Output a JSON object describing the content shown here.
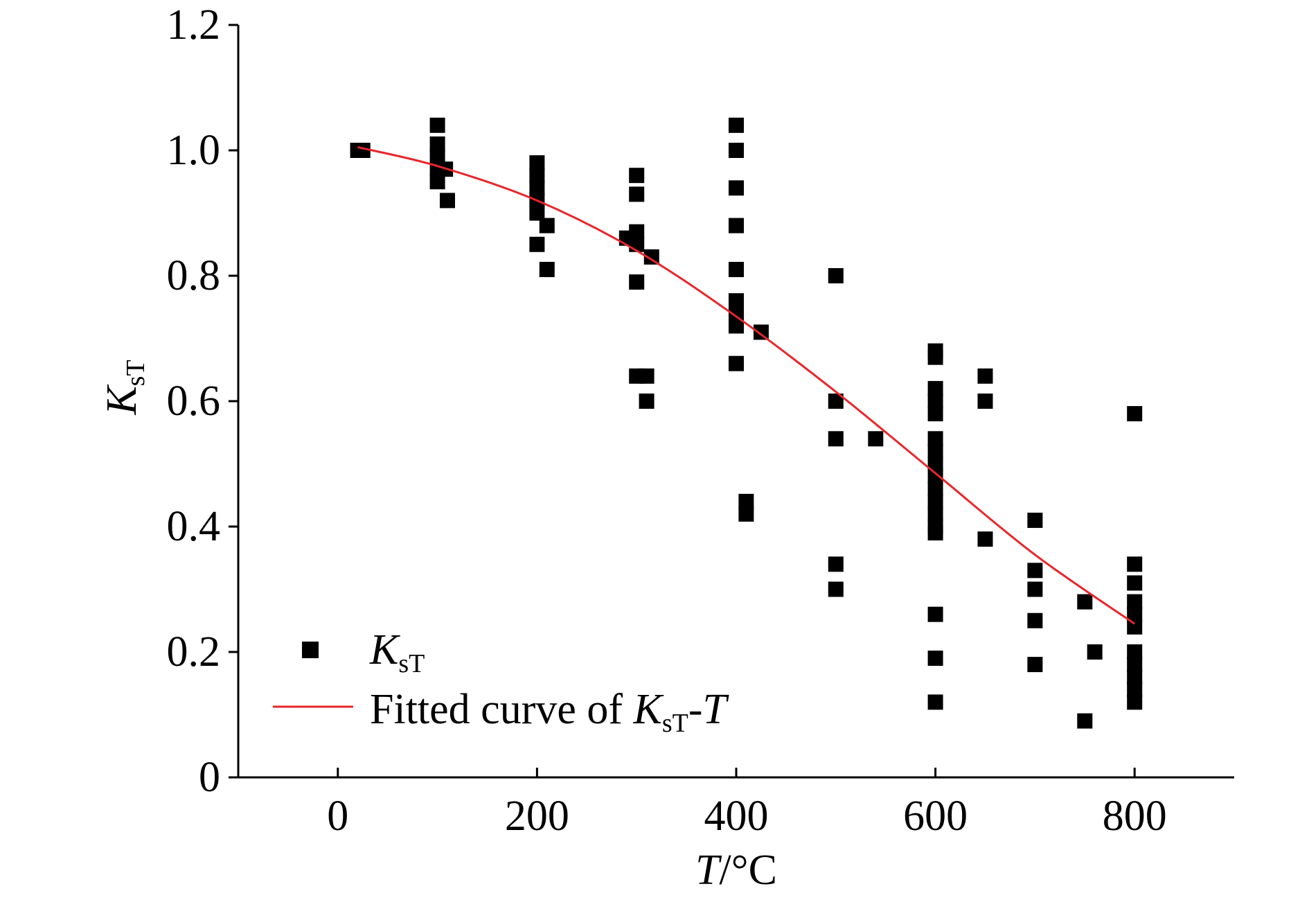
{
  "chart_data": {
    "type": "scatter",
    "title": "",
    "xlabel": {
      "var": "T",
      "unit": "/°C"
    },
    "ylabel": {
      "var": "K",
      "sub": "sT"
    },
    "xlim": [
      -100,
      900
    ],
    "ylim": [
      0,
      1.2
    ],
    "x_ticks": [
      0,
      200,
      400,
      600,
      800
    ],
    "x_tick_labels": [
      "0",
      "200",
      "400",
      "600",
      "800"
    ],
    "y_ticks": [
      0,
      0.2,
      0.4,
      0.6,
      0.8,
      1.0,
      1.2
    ],
    "y_tick_labels": [
      "0",
      "0.2",
      "0.4",
      "0.6",
      "0.8",
      "1.0",
      "1.2"
    ],
    "grid": false,
    "legend_position": "bottom-left",
    "series": [
      {
        "name": "KsT",
        "legend_label": {
          "var": "K",
          "sub": "sT"
        },
        "kind": "scatter",
        "marker": "square",
        "color": "#000000",
        "points": [
          [
            20,
            1.0
          ],
          [
            25,
            1.0
          ],
          [
            100,
            1.04
          ],
          [
            100,
            1.01
          ],
          [
            100,
            0.99
          ],
          [
            100,
            0.97
          ],
          [
            100,
            0.95
          ],
          [
            108,
            0.97
          ],
          [
            110,
            0.92
          ],
          [
            200,
            0.98
          ],
          [
            200,
            0.96
          ],
          [
            200,
            0.94
          ],
          [
            200,
            0.92
          ],
          [
            200,
            0.9
          ],
          [
            200,
            0.85
          ],
          [
            210,
            0.88
          ],
          [
            210,
            0.81
          ],
          [
            290,
            0.86
          ],
          [
            300,
            0.96
          ],
          [
            300,
            0.93
          ],
          [
            300,
            0.87
          ],
          [
            300,
            0.85
          ],
          [
            300,
            0.79
          ],
          [
            300,
            0.64
          ],
          [
            310,
            0.64
          ],
          [
            310,
            0.6
          ],
          [
            315,
            0.83
          ],
          [
            400,
            1.04
          ],
          [
            400,
            1.0
          ],
          [
            400,
            0.94
          ],
          [
            400,
            0.88
          ],
          [
            400,
            0.81
          ],
          [
            400,
            0.76
          ],
          [
            400,
            0.74
          ],
          [
            400,
            0.72
          ],
          [
            400,
            0.66
          ],
          [
            410,
            0.44
          ],
          [
            410,
            0.42
          ],
          [
            425,
            0.71
          ],
          [
            500,
            0.8
          ],
          [
            500,
            0.6
          ],
          [
            500,
            0.54
          ],
          [
            500,
            0.34
          ],
          [
            500,
            0.3
          ],
          [
            540,
            0.54
          ],
          [
            600,
            0.68
          ],
          [
            600,
            0.67
          ],
          [
            600,
            0.62
          ],
          [
            600,
            0.6
          ],
          [
            600,
            0.58
          ],
          [
            600,
            0.54
          ],
          [
            600,
            0.52
          ],
          [
            600,
            0.5
          ],
          [
            600,
            0.48
          ],
          [
            600,
            0.46
          ],
          [
            600,
            0.44
          ],
          [
            600,
            0.42
          ],
          [
            600,
            0.4
          ],
          [
            600,
            0.39
          ],
          [
            600,
            0.26
          ],
          [
            600,
            0.19
          ],
          [
            600,
            0.12
          ],
          [
            650,
            0.64
          ],
          [
            650,
            0.6
          ],
          [
            650,
            0.38
          ],
          [
            700,
            0.41
          ],
          [
            700,
            0.33
          ],
          [
            700,
            0.3
          ],
          [
            700,
            0.25
          ],
          [
            700,
            0.18
          ],
          [
            750,
            0.28
          ],
          [
            750,
            0.09
          ],
          [
            760,
            0.2
          ],
          [
            800,
            0.58
          ],
          [
            800,
            0.34
          ],
          [
            800,
            0.31
          ],
          [
            800,
            0.28
          ],
          [
            800,
            0.26
          ],
          [
            800,
            0.24
          ],
          [
            800,
            0.2
          ],
          [
            800,
            0.18
          ],
          [
            800,
            0.16
          ],
          [
            800,
            0.14
          ],
          [
            800,
            0.12
          ]
        ]
      },
      {
        "name": "Fitted curve of KsT-T",
        "legend_label": {
          "prefix": "Fitted curve of ",
          "var": "K",
          "sub": "sT",
          "dash": "-",
          "var2": "T"
        },
        "kind": "line",
        "color": "#e8262a",
        "x": [
          20,
          100,
          200,
          300,
          400,
          500,
          600,
          700,
          800
        ],
        "y": [
          1.005,
          0.975,
          0.92,
          0.84,
          0.735,
          0.615,
          0.485,
          0.355,
          0.245
        ]
      }
    ]
  }
}
